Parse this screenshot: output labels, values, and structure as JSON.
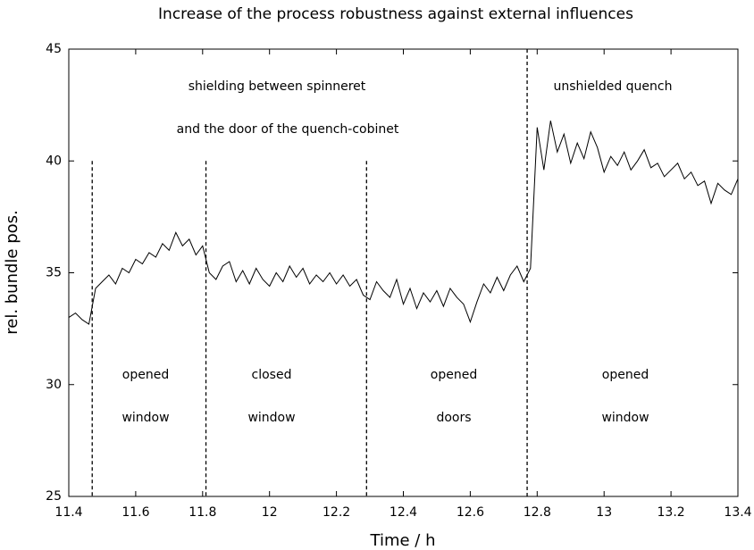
{
  "chart_data": {
    "type": "line",
    "title": "Increase of the process robustness against external influences",
    "xlabel": "Time / h",
    "ylabel": "rel. bundle pos.",
    "xlim": [
      11.4,
      13.4
    ],
    "ylim": [
      25,
      45
    ],
    "xticks": [
      11.4,
      11.6,
      11.8,
      12,
      12.2,
      12.4,
      12.6,
      12.8,
      13,
      13.2,
      13.4
    ],
    "yticks": [
      25,
      30,
      35,
      40,
      45
    ],
    "x": [
      11.4,
      11.42,
      11.44,
      11.46,
      11.48,
      11.5,
      11.52,
      11.54,
      11.56,
      11.58,
      11.6,
      11.62,
      11.64,
      11.66,
      11.68,
      11.7,
      11.72,
      11.74,
      11.76,
      11.78,
      11.8,
      11.82,
      11.84,
      11.86,
      11.88,
      11.9,
      11.92,
      11.94,
      11.96,
      11.98,
      12.0,
      12.02,
      12.04,
      12.06,
      12.08,
      12.1,
      12.12,
      12.14,
      12.16,
      12.18,
      12.2,
      12.22,
      12.24,
      12.26,
      12.28,
      12.3,
      12.32,
      12.34,
      12.36,
      12.38,
      12.4,
      12.42,
      12.44,
      12.46,
      12.48,
      12.5,
      12.52,
      12.54,
      12.56,
      12.58,
      12.6,
      12.62,
      12.64,
      12.66,
      12.68,
      12.7,
      12.72,
      12.74,
      12.76,
      12.78,
      12.8,
      12.82,
      12.84,
      12.86,
      12.88,
      12.9,
      12.92,
      12.94,
      12.96,
      12.98,
      13.0,
      13.02,
      13.04,
      13.06,
      13.08,
      13.1,
      13.12,
      13.14,
      13.16,
      13.18,
      13.2,
      13.22,
      13.24,
      13.26,
      13.28,
      13.3,
      13.32,
      13.34,
      13.36,
      13.38,
      13.4
    ],
    "series": [
      {
        "color": "#000000",
        "values": [
          33.0,
          33.2,
          32.9,
          32.7,
          34.3,
          34.6,
          34.9,
          34.5,
          35.2,
          35.0,
          35.6,
          35.4,
          35.9,
          35.7,
          36.3,
          36.0,
          36.8,
          36.2,
          36.5,
          35.8,
          36.2,
          35.0,
          34.7,
          35.3,
          35.5,
          34.6,
          35.1,
          34.5,
          35.2,
          34.7,
          34.4,
          35.0,
          34.6,
          35.3,
          34.8,
          35.2,
          34.5,
          34.9,
          34.6,
          35.0,
          34.5,
          34.9,
          34.4,
          34.7,
          34.0,
          33.8,
          34.6,
          34.2,
          33.9,
          34.7,
          33.6,
          34.3,
          33.4,
          34.1,
          33.7,
          34.2,
          33.5,
          34.3,
          33.9,
          33.6,
          32.8,
          33.7,
          34.5,
          34.1,
          34.8,
          34.2,
          34.9,
          35.3,
          34.6,
          35.2,
          41.5,
          39.6,
          41.8,
          40.4,
          41.2,
          39.9,
          40.8,
          40.1,
          41.3,
          40.6,
          39.5,
          40.2,
          39.8,
          40.4,
          39.6,
          40.0,
          40.5,
          39.7,
          39.9,
          39.3,
          39.6,
          39.9,
          39.2,
          39.5,
          38.9,
          39.1,
          38.1,
          39.0,
          38.7,
          38.5,
          39.2
        ]
      }
    ],
    "vlines": [
      {
        "x": 11.47,
        "ymax": 40
      },
      {
        "x": 11.81,
        "ymax": 40
      },
      {
        "x": 12.29,
        "ymax": 40
      },
      {
        "x": 12.77,
        "ymax": 45
      }
    ],
    "annotations": [
      "shielding between spinneret",
      "and the door of the quench-cobinet",
      "unshielded quench",
      "opened",
      "window",
      "closed",
      "window",
      "opened",
      "doors",
      "opened",
      "window"
    ]
  }
}
